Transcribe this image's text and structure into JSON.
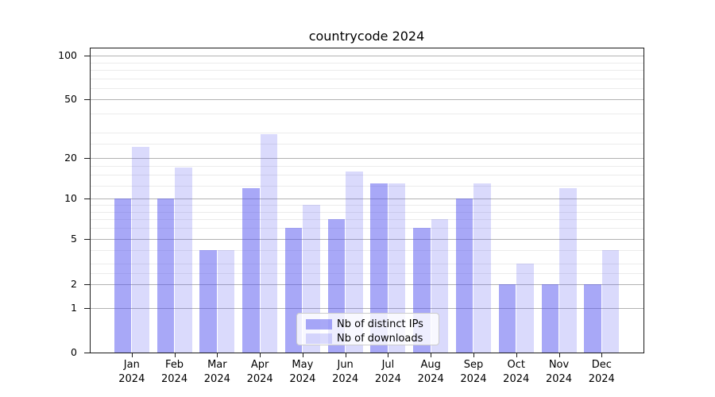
{
  "chart_data": {
    "type": "bar",
    "title": "countrycode 2024",
    "categories": [
      "Jan 2024",
      "Feb 2024",
      "Mar 2024",
      "Apr 2024",
      "May 2024",
      "Jun 2024",
      "Jul 2024",
      "Aug 2024",
      "Sep 2024",
      "Oct 2024",
      "Nov 2024",
      "Dec 2024"
    ],
    "months": [
      "Jan",
      "Feb",
      "Mar",
      "Apr",
      "May",
      "Jun",
      "Jul",
      "Aug",
      "Sep",
      "Oct",
      "Nov",
      "Dec"
    ],
    "year_label": "2024",
    "series": [
      {
        "name": "Nb of distinct IPs",
        "color_hex": "#a8a8f8",
        "base_color_hex": "#5555f0",
        "fill_alpha": 0.51,
        "values": [
          10,
          10,
          4,
          12,
          6,
          7,
          13,
          6,
          10,
          2,
          2,
          2
        ]
      },
      {
        "name": "Nb of downloads",
        "color_hex": "#d9d9fa",
        "base_color_hex": "#5555f0",
        "fill_alpha": 0.22,
        "values": [
          24,
          17,
          4,
          29,
          9,
          16,
          13,
          7,
          13,
          3,
          12,
          4
        ]
      }
    ],
    "xlabel": "",
    "ylabel": "",
    "ylim": [
      0,
      114
    ],
    "yticks": [
      0,
      1,
      2,
      5,
      10,
      20,
      50,
      100
    ],
    "yticks_minor": [
      2.5,
      3,
      4,
      6,
      7,
      8,
      9,
      12.5,
      15,
      17.5,
      25,
      30,
      40,
      60,
      70,
      80,
      90
    ],
    "scale": "symlog-like (log spacing between labeled ticks, linear 0-1)",
    "scale_anchors": [
      [
        0,
        0
      ],
      [
        1,
        0.1458
      ],
      [
        2,
        0.2247
      ],
      [
        5,
        0.3732
      ],
      [
        10,
        0.5044
      ],
      [
        20,
        0.6372
      ],
      [
        50,
        0.83
      ],
      [
        100,
        0.9732
      ]
    ],
    "grid": true,
    "legend_position": "lower center inside plot"
  },
  "colors": {
    "background": "#ffffff",
    "grid_major": "#b2b2b2",
    "grid_minor": "#ebebeb",
    "spine": "#1a1a1a",
    "text": "#000000",
    "legend_border": "#cccccc"
  }
}
